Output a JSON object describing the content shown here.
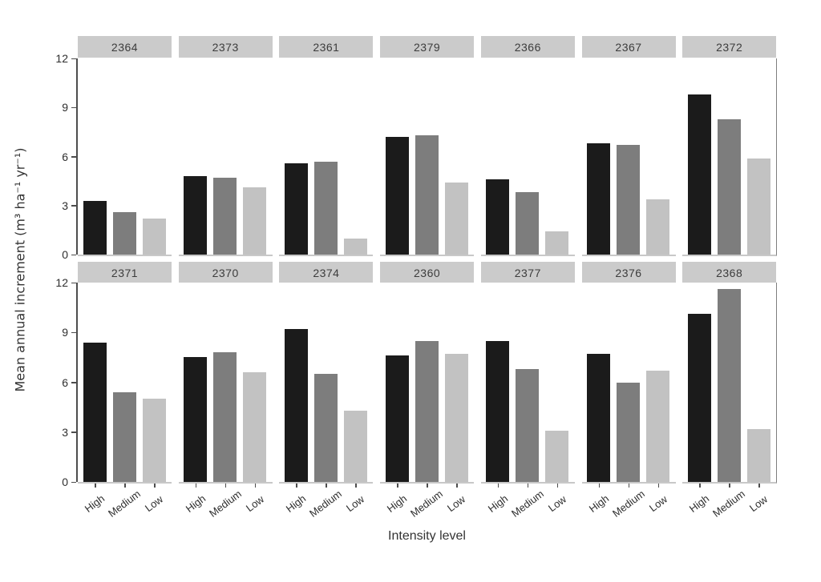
{
  "chart_data": {
    "type": "bar",
    "title": "",
    "xlabel": "Intensity level",
    "ylabel": "Mean annual increment (m³ ha⁻¹ yr⁻¹)",
    "categories": [
      "High",
      "Medium",
      "Low"
    ],
    "ylim": [
      0,
      12
    ],
    "yticks": [
      0,
      3,
      6,
      9,
      12
    ],
    "grid": false,
    "legend": "none",
    "facet_rows": [
      [
        "2364",
        "2373",
        "2361",
        "2379",
        "2366",
        "2367",
        "2372"
      ],
      [
        "2371",
        "2370",
        "2374",
        "2360",
        "2377",
        "2376",
        "2368"
      ]
    ],
    "series_colors": {
      "High": "#1b1b1b",
      "Medium": "#7d7d7d",
      "Low": "#c2c2c2"
    },
    "strip_bg": "#cbcbcb",
    "strip_text_color": "#3c3c3c",
    "panels": [
      {
        "id": "2364",
        "values": [
          3.3,
          2.6,
          2.2
        ]
      },
      {
        "id": "2373",
        "values": [
          4.8,
          4.7,
          4.1
        ]
      },
      {
        "id": "2361",
        "values": [
          5.6,
          5.7,
          1.0
        ]
      },
      {
        "id": "2379",
        "values": [
          7.2,
          7.3,
          4.4
        ]
      },
      {
        "id": "2366",
        "values": [
          4.6,
          3.8,
          1.4
        ]
      },
      {
        "id": "2367",
        "values": [
          6.8,
          6.7,
          3.4
        ]
      },
      {
        "id": "2372",
        "values": [
          9.8,
          8.3,
          5.9
        ]
      },
      {
        "id": "2371",
        "values": [
          8.4,
          5.4,
          5.0
        ]
      },
      {
        "id": "2370",
        "values": [
          7.5,
          7.8,
          6.6
        ]
      },
      {
        "id": "2374",
        "values": [
          9.2,
          6.5,
          4.3
        ]
      },
      {
        "id": "2360",
        "values": [
          7.6,
          8.5,
          7.7
        ]
      },
      {
        "id": "2377",
        "values": [
          8.5,
          6.8,
          3.1
        ]
      },
      {
        "id": "2376",
        "values": [
          7.7,
          6.0,
          6.7
        ]
      },
      {
        "id": "2368",
        "values": [
          10.1,
          11.6,
          3.2
        ]
      }
    ]
  }
}
